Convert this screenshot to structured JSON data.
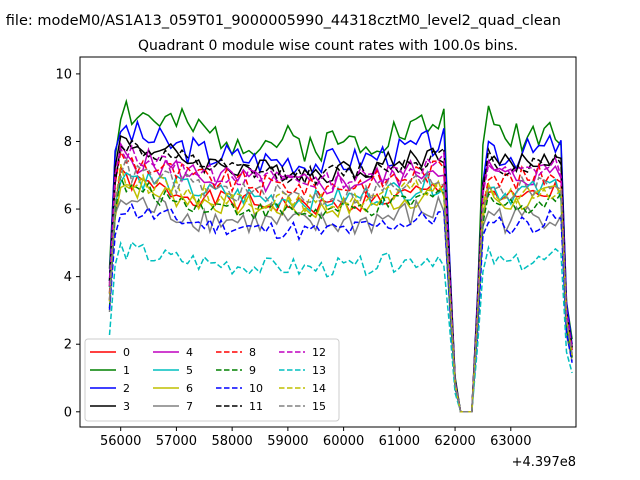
{
  "chart_data": {
    "type": "line",
    "suptitle": "n file: modeM0/AS1A13_059T01_9000005990_44318cztM0_level2_quad_clean",
    "title": "Quadrant 0 module wise count rates with 100.0s bins.",
    "xlabel": "",
    "ylabel": "",
    "x_offset_label": "+4.397e8",
    "x_start": 55800,
    "x_step": 100,
    "xlim": [
      55270,
      64170
    ],
    "ylim": [
      -0.45,
      10.5
    ],
    "xticks": [
      56000,
      57000,
      58000,
      59000,
      60000,
      61000,
      62000,
      63000
    ],
    "xtick_labels": [
      "56000",
      "57000",
      "58000",
      "59000",
      "60000",
      "61000",
      "62000",
      "63000"
    ],
    "yticks": [
      0,
      2,
      4,
      6,
      8,
      10
    ],
    "ytick_labels": [
      "0",
      "2",
      "4",
      "6",
      "8",
      "10"
    ],
    "grid": false,
    "legend_position": "lower-left",
    "legend_columns": 4,
    "series": [
      {
        "name": "0",
        "color": "#ff0000",
        "dash": "solid",
        "base": 6.6,
        "amp": 0.3,
        "seed": 1
      },
      {
        "name": "1",
        "color": "#008000",
        "dash": "solid",
        "base": 8.6,
        "amp": 0.55,
        "seed": 2
      },
      {
        "name": "2",
        "color": "#0000ff",
        "dash": "solid",
        "base": 8.0,
        "amp": 0.45,
        "seed": 3
      },
      {
        "name": "3",
        "color": "#000000",
        "dash": "solid",
        "base": 7.7,
        "amp": 0.35,
        "seed": 4
      },
      {
        "name": "4",
        "color": "#bf00bf",
        "dash": "solid",
        "base": 7.3,
        "amp": 0.4,
        "seed": 5
      },
      {
        "name": "5",
        "color": "#00bfbf",
        "dash": "solid",
        "base": 6.8,
        "amp": 0.35,
        "seed": 6
      },
      {
        "name": "6",
        "color": "#bfbf00",
        "dash": "solid",
        "base": 6.5,
        "amp": 0.35,
        "seed": 7
      },
      {
        "name": "7",
        "color": "#808080",
        "dash": "solid",
        "base": 6.0,
        "amp": 0.45,
        "seed": 8
      },
      {
        "name": "8",
        "color": "#ff0000",
        "dash": "dashed",
        "base": 7.2,
        "amp": 0.35,
        "seed": 9
      },
      {
        "name": "9",
        "color": "#008000",
        "dash": "dashed",
        "base": 6.4,
        "amp": 0.3,
        "seed": 10
      },
      {
        "name": "10",
        "color": "#0000ff",
        "dash": "dashed",
        "base": 5.8,
        "amp": 0.3,
        "seed": 11
      },
      {
        "name": "11",
        "color": "#000000",
        "dash": "dashed",
        "base": 7.6,
        "amp": 0.3,
        "seed": 12
      },
      {
        "name": "12",
        "color": "#bf00bf",
        "dash": "dashed",
        "base": 7.4,
        "amp": 0.3,
        "seed": 13
      },
      {
        "name": "13",
        "color": "#00bfbf",
        "dash": "dashed",
        "base": 4.6,
        "amp": 0.3,
        "seed": 14
      },
      {
        "name": "14",
        "color": "#bfbf00",
        "dash": "dashed",
        "base": 6.7,
        "amp": 0.3,
        "seed": 15
      },
      {
        "name": "15",
        "color": "#808080",
        "dash": "dashed",
        "base": 6.9,
        "amp": 0.35,
        "seed": 16
      }
    ],
    "profile": [
      0.5,
      0.92,
      1.05,
      1.04,
      1.03,
      1.02,
      1.02,
      1.01,
      1.0,
      1.0,
      0.99,
      0.99,
      0.98,
      0.98,
      0.97,
      0.97,
      0.96,
      0.96,
      0.95,
      0.95,
      0.95,
      0.95,
      0.94,
      0.94,
      0.94,
      0.94,
      0.93,
      0.93,
      0.93,
      0.93,
      0.93,
      0.93,
      0.93,
      0.93,
      0.92,
      0.92,
      0.92,
      0.92,
      0.92,
      0.92,
      0.93,
      0.93,
      0.93,
      0.93,
      0.93,
      0.94,
      0.94,
      0.94,
      0.95,
      0.95,
      0.96,
      0.96,
      0.96,
      0.97,
      0.97,
      0.98,
      0.98,
      0.99,
      0.99,
      1.0,
      1.0,
      0.55,
      0.12,
      0.0,
      0.0,
      0.0,
      0.4,
      0.88,
      1.0,
      0.98,
      0.96,
      0.95,
      0.95,
      0.95,
      0.96,
      0.96,
      0.96,
      0.97,
      0.97,
      0.98,
      0.99,
      0.97,
      0.4,
      0.25
    ]
  }
}
